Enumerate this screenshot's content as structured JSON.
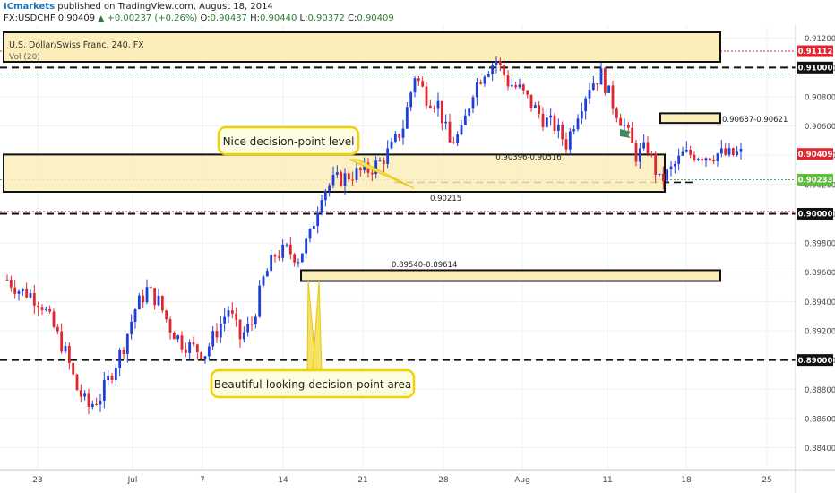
{
  "header": {
    "publisher": "ICmarkets",
    "published_text": " published on TradingView.com, August 18, 2014",
    "symbol": "FX:USDCHF",
    "last": "0.90409",
    "change": "+0.00237 (+0.26%)",
    "open_label": "O:",
    "open": "0.90437",
    "high_label": "H:",
    "high": "0.90440",
    "low_label": "L:",
    "low": "0.90372",
    "close_label": "C:",
    "close": "0.90409"
  },
  "chart_data": {
    "type": "candlestick",
    "title": "U.S. Dollar/Swiss Franc, 240, FX",
    "volume_label": "Vol (20)",
    "ylim": [
      0.8825,
      0.9129
    ],
    "y_ticks": [
      "0.91200",
      "0.91000",
      "0.90800",
      "0.90600",
      "0.90400",
      "0.90200",
      "0.90000",
      "0.89800",
      "0.89600",
      "0.89400",
      "0.89200",
      "0.89000",
      "0.88800",
      "0.88600",
      "0.88400"
    ],
    "x_ticks": [
      "23",
      "Jul",
      "7",
      "14",
      "21",
      "28",
      "Aug",
      "11",
      "18",
      "25"
    ],
    "colors": {
      "up": "#1f3fd9",
      "down": "#e0262f",
      "zone_fill": "#fbeebb",
      "zone_border": "#111111"
    },
    "price_labels": [
      {
        "value": "0.91112",
        "level": 0.91112,
        "bg": "#e0262f",
        "fg": "#ffffff"
      },
      {
        "value": "0.91000",
        "level": 0.91,
        "bg": "#111111",
        "fg": "#ffffff"
      },
      {
        "value": "0.90409",
        "level": 0.90409,
        "bg": "#e0262f",
        "fg": "#ffffff"
      },
      {
        "value": "0.90233",
        "level": 0.90233,
        "bg": "#5fbf3a",
        "fg": "#ffffff"
      },
      {
        "value": "0.90000",
        "level": 0.9,
        "bg": "#111111",
        "fg": "#ffffff"
      },
      {
        "value": "0.89000",
        "level": 0.89,
        "bg": "#111111",
        "fg": "#ffffff"
      }
    ],
    "zone_annotations": [
      "0.90687-0.90621",
      "0.90396-0.90516",
      "0.90215",
      "0.89540-0.89614"
    ],
    "callouts": [
      "Nice decision-point level",
      "Beautiful-looking decision-point area"
    ],
    "path_days": [
      0,
      1,
      2,
      3,
      4,
      5,
      6,
      7,
      8,
      9,
      10,
      11,
      12,
      13,
      14,
      15,
      16,
      17,
      18,
      19,
      20,
      21,
      22,
      23,
      24,
      25,
      26,
      27,
      28,
      29,
      30,
      31,
      32,
      33,
      34,
      35,
      36,
      37,
      38,
      39,
      40,
      41,
      42,
      43,
      44,
      45,
      46,
      47,
      48,
      49,
      50,
      51,
      52,
      53,
      54,
      55,
      56,
      57,
      58,
      59,
      60,
      61,
      62,
      63
    ],
    "path_close": [
      0.8955,
      0.8948,
      0.8945,
      0.8938,
      0.8922,
      0.8905,
      0.888,
      0.8868,
      0.8875,
      0.8892,
      0.891,
      0.8935,
      0.8948,
      0.894,
      0.8922,
      0.8912,
      0.8908,
      0.8905,
      0.892,
      0.8935,
      0.8915,
      0.8925,
      0.8955,
      0.8972,
      0.8975,
      0.897,
      0.8985,
      0.9015,
      0.9022,
      0.9025,
      0.9028,
      0.903,
      0.9035,
      0.9045,
      0.906,
      0.9095,
      0.908,
      0.9075,
      0.9048,
      0.9055,
      0.9085,
      0.9098,
      0.9105,
      0.909,
      0.9085,
      0.9075,
      0.9065,
      0.906,
      0.9048,
      0.907,
      0.9088,
      0.9095,
      0.9075,
      0.906,
      0.904,
      0.9045,
      0.9022,
      0.903,
      0.904,
      0.9041,
      0.904,
      0.9041,
      0.904,
      0.9041
    ]
  }
}
